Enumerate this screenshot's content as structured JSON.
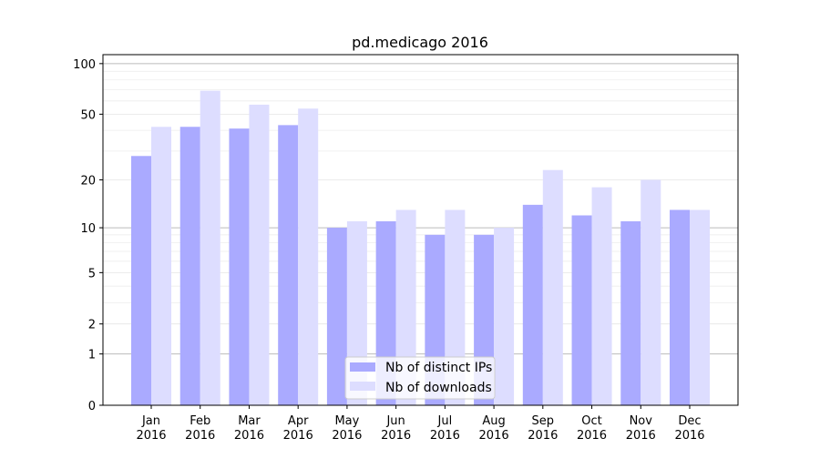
{
  "chart_data": {
    "type": "bar",
    "title": "pd.medicago 2016",
    "xlabel": "",
    "ylabel": "",
    "yscale": "log10(value+1)",
    "ylim": [
      0,
      113
    ],
    "yticks": [
      0,
      1,
      2,
      5,
      10,
      20,
      50,
      100
    ],
    "grid": true,
    "legend_position": "bottom-center",
    "categories": [
      [
        "Jan",
        "2016"
      ],
      [
        "Feb",
        "2016"
      ],
      [
        "Mar",
        "2016"
      ],
      [
        "Apr",
        "2016"
      ],
      [
        "May",
        "2016"
      ],
      [
        "Jun",
        "2016"
      ],
      [
        "Jul",
        "2016"
      ],
      [
        "Aug",
        "2016"
      ],
      [
        "Sep",
        "2016"
      ],
      [
        "Oct",
        "2016"
      ],
      [
        "Nov",
        "2016"
      ],
      [
        "Dec",
        "2016"
      ]
    ],
    "series": [
      {
        "name": "Nb of distinct IPs",
        "color": "#aaaaff",
        "values": [
          28,
          42,
          41,
          43,
          10,
          11,
          9,
          9,
          14,
          12,
          11,
          13
        ]
      },
      {
        "name": "Nb of downloads",
        "color": "#ddddff",
        "values": [
          42,
          69,
          57,
          54,
          11,
          13,
          13,
          10,
          23,
          18,
          20,
          13
        ]
      }
    ]
  }
}
